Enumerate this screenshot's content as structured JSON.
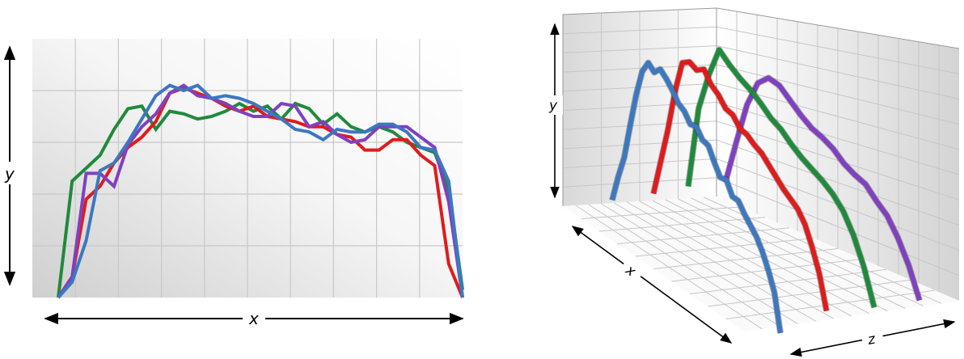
{
  "chart_data": [
    {
      "type": "line",
      "view": "2d",
      "xlabel": "x",
      "ylabel": "y",
      "grid": true,
      "series": [
        {
          "color": "#1f8a3c",
          "values": [
            0.0,
            0.45,
            0.5,
            0.55,
            0.65,
            0.73,
            0.74,
            0.65,
            0.72,
            0.71,
            0.69,
            0.7,
            0.72,
            0.75,
            0.72,
            0.74,
            0.69,
            0.75,
            0.73,
            0.67,
            0.71,
            0.66,
            0.64,
            0.66,
            0.64,
            0.6,
            0.58,
            0.56,
            0.42,
            0.03
          ]
        },
        {
          "color": "#e01b1b",
          "values": [
            0.0,
            0.08,
            0.38,
            0.43,
            0.52,
            0.58,
            0.62,
            0.68,
            0.79,
            0.81,
            0.79,
            0.77,
            0.74,
            0.72,
            0.74,
            0.7,
            0.69,
            0.68,
            0.66,
            0.66,
            0.63,
            0.62,
            0.57,
            0.57,
            0.61,
            0.61,
            0.55,
            0.51,
            0.13,
            0.0
          ]
        },
        {
          "color": "#8040c0",
          "values": [
            0.0,
            0.08,
            0.48,
            0.48,
            0.43,
            0.59,
            0.66,
            0.71,
            0.79,
            0.82,
            0.78,
            0.77,
            0.75,
            0.72,
            0.7,
            0.7,
            0.75,
            0.74,
            0.66,
            0.68,
            0.63,
            0.6,
            0.61,
            0.66,
            0.66,
            0.66,
            0.62,
            0.58,
            0.37,
            0.0
          ]
        },
        {
          "color": "#3c78c0",
          "values": [
            0.0,
            0.06,
            0.22,
            0.49,
            0.52,
            0.6,
            0.69,
            0.78,
            0.82,
            0.8,
            0.82,
            0.77,
            0.78,
            0.77,
            0.75,
            0.72,
            0.69,
            0.65,
            0.64,
            0.61,
            0.65,
            0.64,
            0.64,
            0.67,
            0.67,
            0.64,
            0.58,
            0.57,
            0.45,
            0.0
          ]
        }
      ]
    },
    {
      "type": "line",
      "view": "3d",
      "xlabel": "x",
      "ylabel": "y",
      "zlabel": "z",
      "grid": true,
      "series": [
        {
          "color": "#3c78c0",
          "values": [
            0.1,
            0.25,
            0.38,
            0.58,
            0.77,
            0.92,
            0.99,
            0.96,
            1.0,
            0.97,
            0.93,
            0.88,
            0.86,
            0.81,
            0.82,
            0.77,
            0.76,
            0.69,
            0.63,
            0.64,
            0.57,
            0.57,
            0.52,
            0.48,
            0.44,
            0.38,
            0.3,
            0.2,
            0.0
          ]
        },
        {
          "color": "#e01b1b",
          "values": [
            0.1,
            0.3,
            0.5,
            0.74,
            0.92,
            0.95,
            0.93,
            0.96,
            0.9,
            0.87,
            0.82,
            0.81,
            0.76,
            0.75,
            0.72,
            0.7,
            0.66,
            0.62,
            0.58,
            0.55,
            0.52,
            0.46,
            0.36,
            0.24,
            0.06
          ]
        },
        {
          "color": "#1f8a3c",
          "values": [
            0.1,
            0.56,
            0.78,
            0.95,
            0.9,
            0.86,
            0.83,
            0.79,
            0.74,
            0.71,
            0.66,
            0.62,
            0.59,
            0.56,
            0.52,
            0.46,
            0.36,
            0.22,
            0.03
          ]
        },
        {
          "color": "#8040c0",
          "values": [
            0.1,
            0.35,
            0.59,
            0.74,
            0.8,
            0.79,
            0.74,
            0.69,
            0.65,
            0.63,
            0.6,
            0.55,
            0.52,
            0.5,
            0.44,
            0.39,
            0.3,
            0.18,
            0.02
          ]
        }
      ]
    }
  ]
}
